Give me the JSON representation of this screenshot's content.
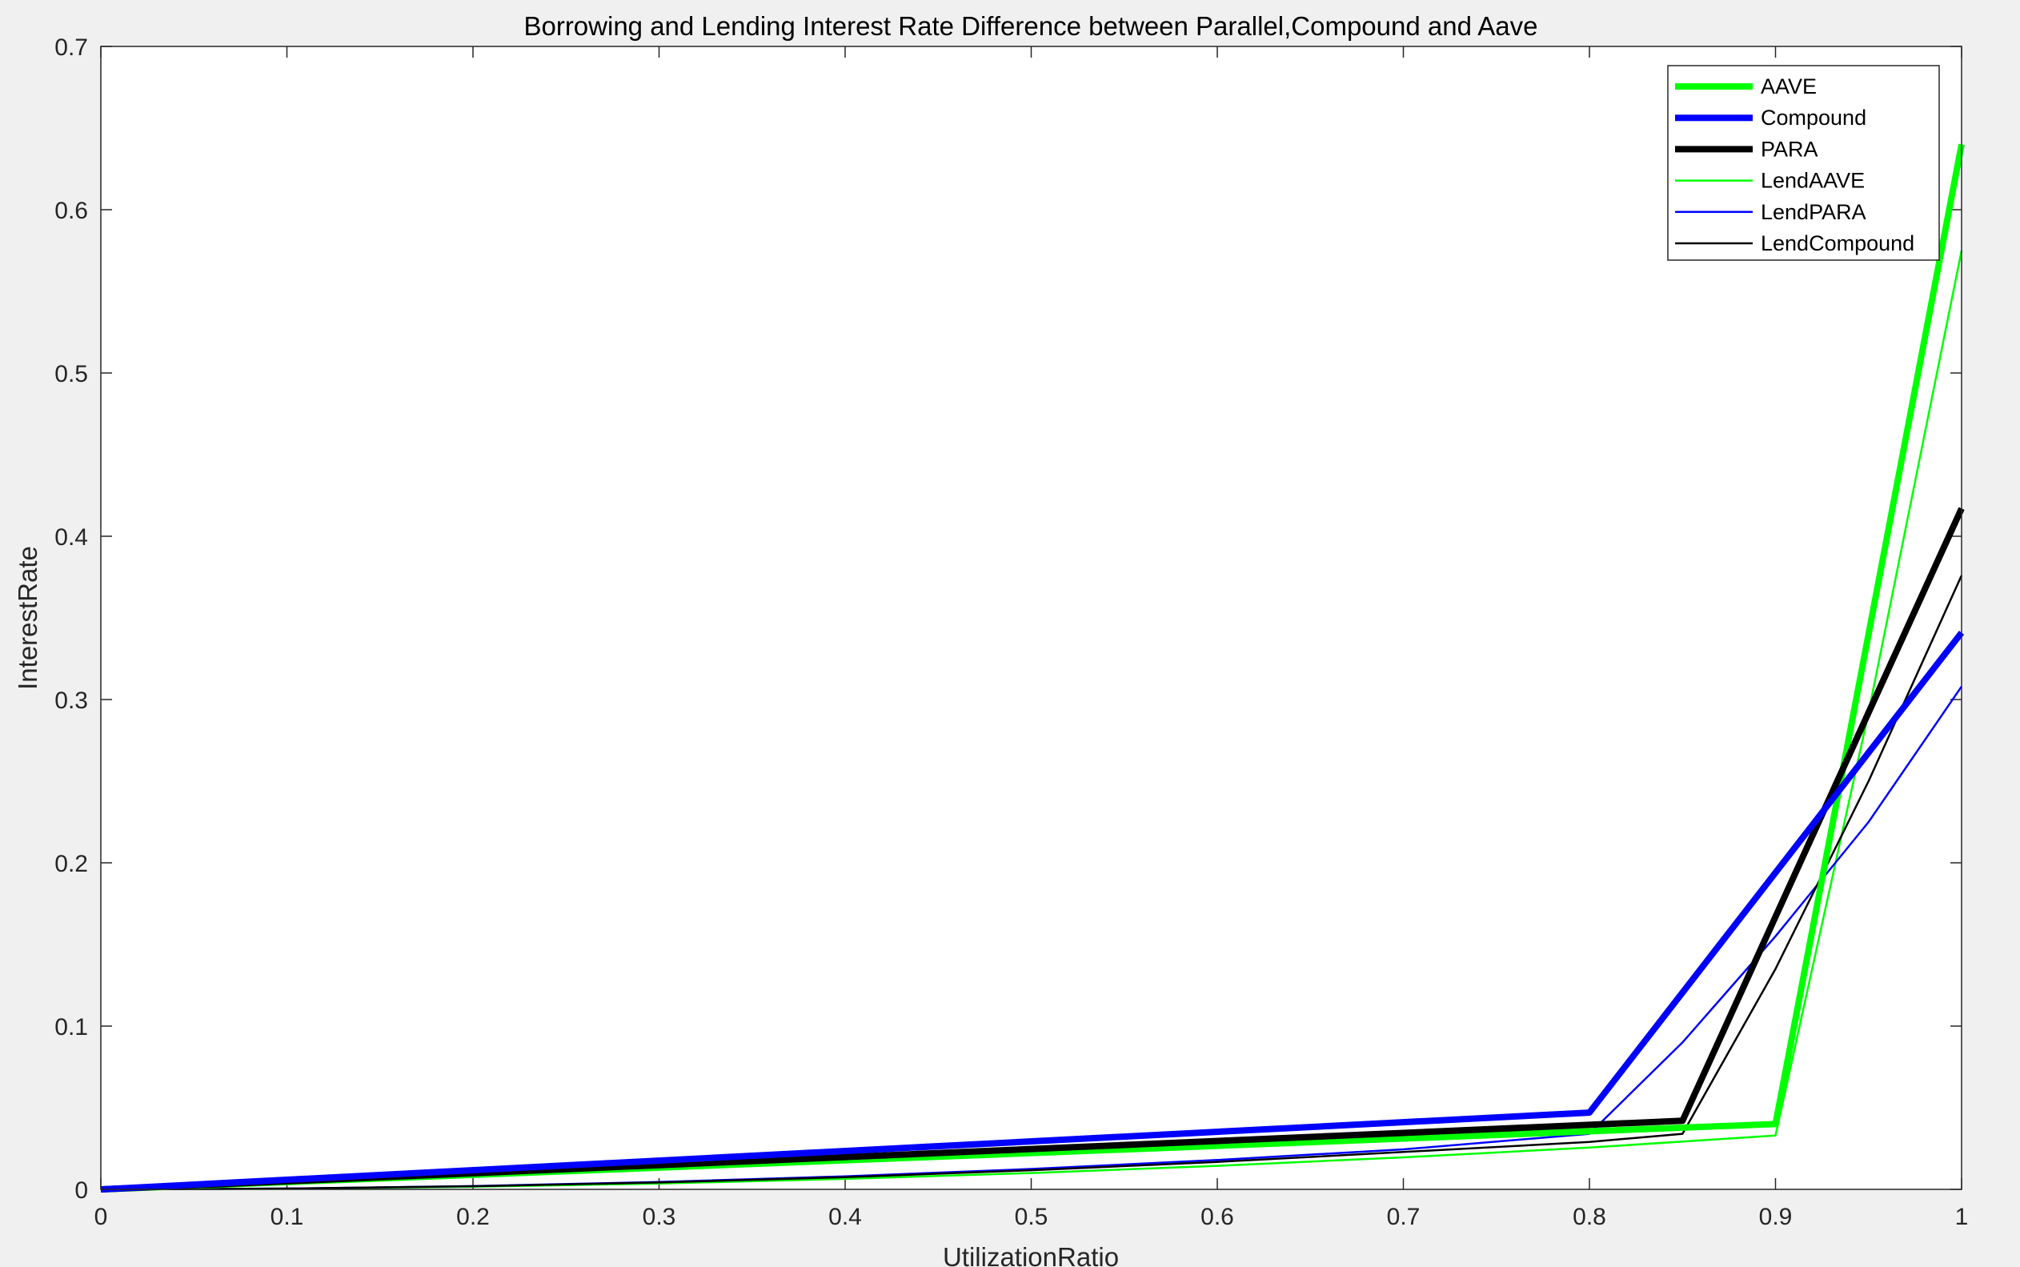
{
  "chart_data": {
    "type": "line",
    "title": "Borrowing and Lending Interest Rate Difference between Parallel,Compound and Aave",
    "xlabel": "UtilizationRatio",
    "ylabel": "InterestRate",
    "xlim": [
      0,
      1
    ],
    "ylim": [
      0,
      0.7
    ],
    "xticks": [
      0,
      0.1,
      0.2,
      0.3,
      0.4,
      0.5,
      0.6,
      0.7,
      0.8,
      0.9,
      1
    ],
    "xtick_labels": [
      "0",
      "0.1",
      "0.2",
      "0.3",
      "0.4",
      "0.5",
      "0.6",
      "0.7",
      "0.8",
      "0.9",
      "1"
    ],
    "yticks": [
      0,
      0.1,
      0.2,
      0.3,
      0.4,
      0.5,
      0.6,
      0.7
    ],
    "ytick_labels": [
      "0",
      "0.1",
      "0.2",
      "0.3",
      "0.4",
      "0.5",
      "0.6",
      "0.7"
    ],
    "grid": false,
    "legend_position": "top-right",
    "series": [
      {
        "name": "AAVE",
        "color": "#00ff00",
        "weight": "thick",
        "x": [
          0,
          0.9,
          1
        ],
        "y": [
          0,
          0.04,
          0.64
        ]
      },
      {
        "name": "Compound",
        "color": "#0000ff",
        "weight": "thick",
        "x": [
          0,
          0.8,
          1
        ],
        "y": [
          0,
          0.047,
          0.341
        ]
      },
      {
        "name": "PARA",
        "color": "#000000",
        "weight": "thick",
        "x": [
          0,
          0.85,
          1
        ],
        "y": [
          0,
          0.042,
          0.417
        ]
      },
      {
        "name": "LendAAVE",
        "color": "#00ff00",
        "weight": "thin",
        "x": [
          0,
          0.1,
          0.2,
          0.3,
          0.4,
          0.5,
          0.6,
          0.7,
          0.8,
          0.9,
          0.95,
          1
        ],
        "y": [
          0,
          0.0004,
          0.0016,
          0.0036,
          0.0064,
          0.01,
          0.0144,
          0.0196,
          0.0256,
          0.033,
          0.292,
          0.575
        ]
      },
      {
        "name": "LendPARA",
        "color": "#0000ff",
        "weight": "thin",
        "x": [
          0,
          0.1,
          0.2,
          0.3,
          0.4,
          0.5,
          0.6,
          0.7,
          0.8,
          0.85,
          0.9,
          0.95,
          1
        ],
        "y": [
          0,
          0.0005,
          0.002,
          0.0045,
          0.008,
          0.0125,
          0.018,
          0.0245,
          0.034,
          0.09,
          0.155,
          0.225,
          0.308
        ]
      },
      {
        "name": "LendCompound",
        "color": "#000000",
        "weight": "thin",
        "x": [
          0,
          0.1,
          0.2,
          0.3,
          0.4,
          0.5,
          0.6,
          0.7,
          0.8,
          0.85,
          0.9,
          0.95,
          1
        ],
        "y": [
          0,
          0.0005,
          0.0019,
          0.0042,
          0.0075,
          0.0117,
          0.0168,
          0.0229,
          0.029,
          0.034,
          0.135,
          0.25,
          0.376
        ]
      }
    ]
  }
}
